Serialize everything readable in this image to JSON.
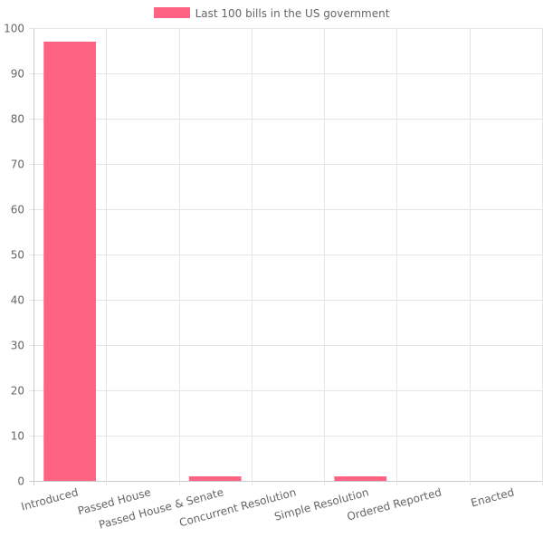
{
  "chart_data": {
    "type": "bar",
    "categories": [
      "Introduced",
      "Passed House",
      "Passed House & Senate",
      "Concurrent Resolution",
      "Simple Resolution",
      "Ordered Reported",
      "Enacted"
    ],
    "series": [
      {
        "name": "Last 100 bills in the US government",
        "values": [
          97,
          0,
          1,
          0,
          1,
          0,
          0
        ]
      }
    ],
    "ylim": [
      0,
      100
    ],
    "yticks": [
      0,
      10,
      20,
      30,
      40,
      50,
      60,
      70,
      80,
      90,
      100
    ],
    "grid": true,
    "legend_position": "top",
    "colors": {
      "bar": "#ff6384",
      "grid": "#e5e5e5",
      "axis": "#cccccc",
      "text": "#666666"
    }
  }
}
